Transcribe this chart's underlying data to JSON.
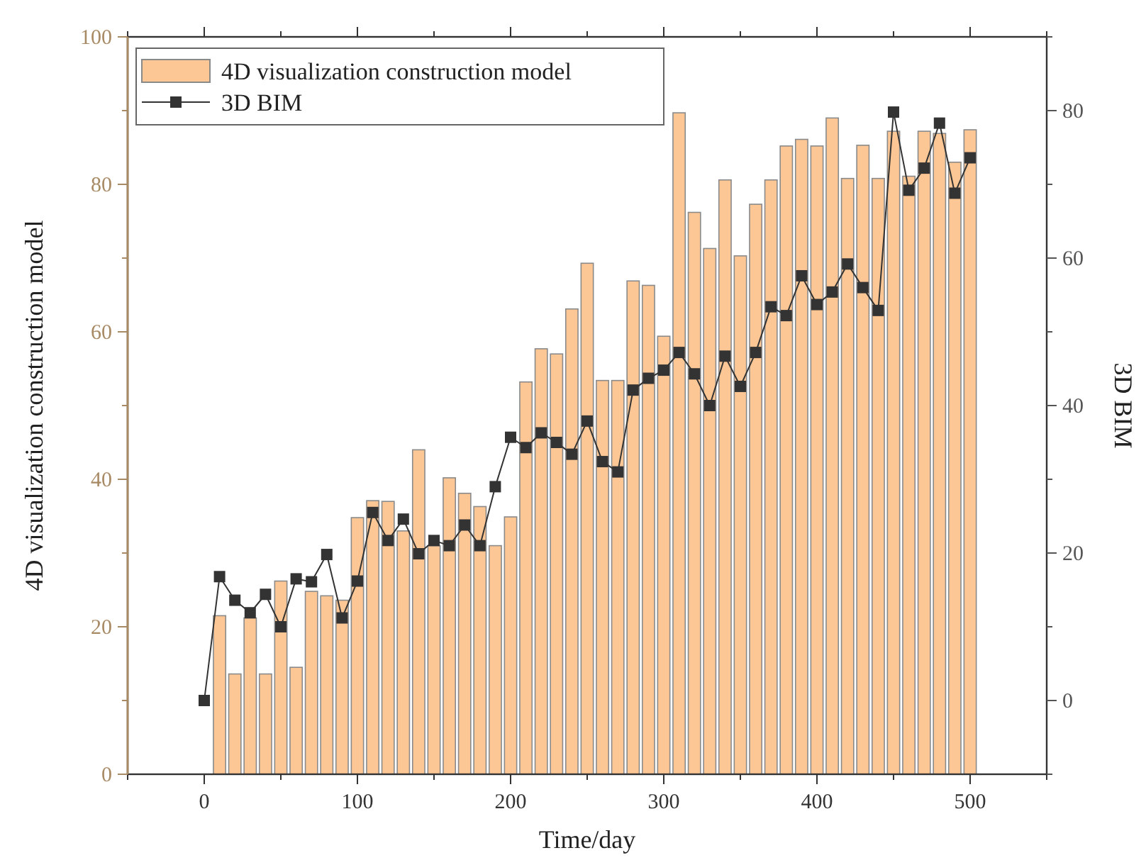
{
  "chart_data": {
    "type": "bar",
    "xlabel": "Time/day",
    "ylabel": "4D visualization construction model",
    "y2label": "3D BIM",
    "xlim": [
      -50,
      550
    ],
    "xticks": [
      {
        "value": -50,
        "label": null
      },
      0,
      {
        "value": 50,
        "label": null
      },
      100,
      {
        "value": 150,
        "label": null
      },
      200,
      {
        "value": 250,
        "label": null
      },
      300,
      {
        "value": 350,
        "label": null
      },
      400,
      {
        "value": 450,
        "label": null
      },
      500,
      {
        "value": 550,
        "label": null
      }
    ],
    "ylim": [
      0,
      100
    ],
    "yticks": [
      0,
      {
        "value": 10,
        "label": null
      },
      20,
      {
        "value": 30,
        "label": null
      },
      40,
      {
        "value": 50,
        "label": null
      },
      60,
      {
        "value": 70,
        "label": null
      },
      80,
      {
        "value": 90,
        "label": null
      },
      100
    ],
    "y2lim": [
      -10,
      90
    ],
    "y2ticks": [
      {
        "value": -10,
        "label": null
      },
      0,
      {
        "value": 10,
        "label": null
      },
      20,
      {
        "value": 30,
        "label": null
      },
      40,
      {
        "value": 50,
        "label": null
      },
      60,
      {
        "value": 70,
        "label": null
      },
      80,
      {
        "value": 90,
        "label": null
      }
    ],
    "legend": "top left",
    "grid": false,
    "series": [
      {
        "name": "4D visualization construction model",
        "color": "#fdc795",
        "x": [
          10,
          20,
          30,
          40,
          50,
          60,
          70,
          80,
          90,
          100,
          110,
          120,
          130,
          140,
          150,
          160,
          170,
          180,
          190,
          200,
          210,
          220,
          230,
          240,
          250,
          260,
          270,
          280,
          290,
          300,
          310,
          320,
          330,
          340,
          350,
          360,
          370,
          380,
          390,
          400,
          410,
          420,
          430,
          440,
          450,
          460,
          470,
          480,
          490,
          500
        ],
        "values": [
          21.5,
          13.6,
          21.2,
          13.6,
          26.2,
          14.5,
          24.8,
          24.2,
          23.6,
          34.8,
          37.1,
          37,
          33,
          44,
          31,
          40.2,
          38.1,
          36.3,
          31,
          34.9,
          53.2,
          57.7,
          57,
          63.1,
          69.3,
          53.4,
          53.4,
          66.9,
          66.3,
          59.4,
          89.7,
          76.2,
          71.3,
          80.6,
          70.3,
          77.3,
          80.6,
          85.2,
          86.1,
          85.2,
          89,
          80.8,
          85.3,
          80.8,
          87.2,
          81.1,
          87.2,
          86.9,
          83,
          87.4
        ]
      },
      {
        "name": "3D BIM",
        "type": "line",
        "axis": "y2",
        "color": "#333333",
        "marker": "square",
        "line_style": "solid",
        "x": [
          0,
          10,
          20,
          30,
          40,
          50,
          60,
          70,
          80,
          90,
          100,
          110,
          120,
          130,
          140,
          150,
          160,
          170,
          180,
          190,
          200,
          210,
          220,
          230,
          240,
          250,
          260,
          270,
          280,
          290,
          300,
          310,
          320,
          330,
          340,
          350,
          360,
          370,
          380,
          390,
          400,
          410,
          420,
          430,
          440,
          450,
          460,
          470,
          480,
          490,
          500
        ],
        "values": [
          0,
          16.8,
          13.6,
          11.9,
          14.4,
          10,
          16.5,
          16.1,
          19.8,
          11.2,
          16.2,
          25.5,
          21.7,
          24.6,
          19.9,
          21.7,
          21,
          23.8,
          21,
          29,
          35.7,
          34.3,
          36.3,
          35,
          33.4,
          37.9,
          32.4,
          31,
          42.1,
          43.7,
          44.8,
          47.2,
          44.3,
          40,
          46.7,
          42.6,
          47.2,
          53.4,
          52.2,
          57.6,
          53.7,
          55.4,
          59.2,
          56,
          52.9,
          79.8,
          69.2,
          72.2,
          78.3,
          68.8,
          73.6
        ]
      }
    ]
  }
}
